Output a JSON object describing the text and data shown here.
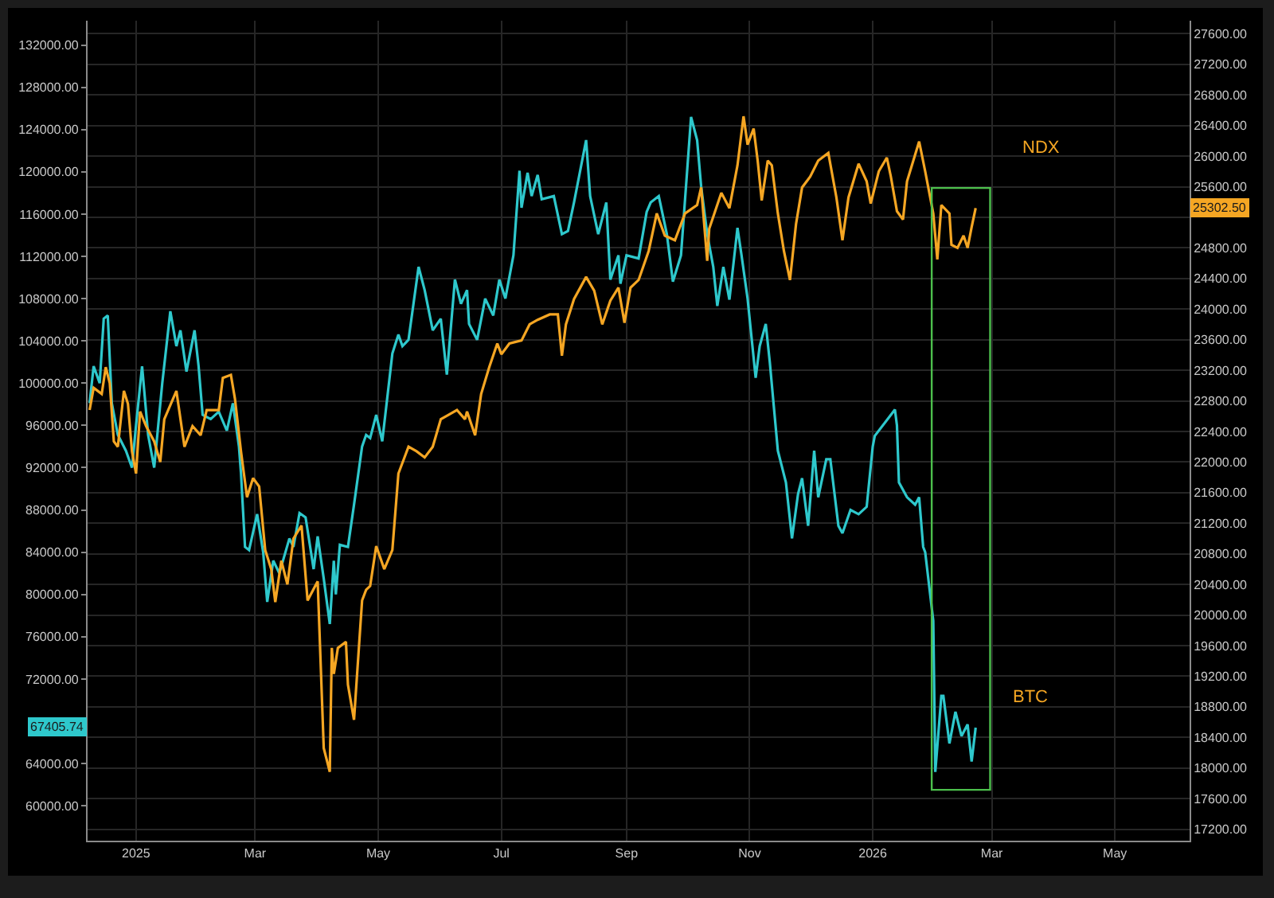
{
  "chart_data": {
    "type": "line",
    "xlim": [
      "2024-12-08",
      "2026-06-07"
    ],
    "xticks": [
      {
        "value": "2025-01-01",
        "label": "2025"
      },
      {
        "value": "2025-03-01",
        "label": "Mar"
      },
      {
        "value": "2025-05-01",
        "label": "May"
      },
      {
        "value": "2025-07-01",
        "label": "Jul"
      },
      {
        "value": "2025-09-01",
        "label": "Sep"
      },
      {
        "value": "2025-11-01",
        "label": "Nov"
      },
      {
        "value": "2026-01-01",
        "label": "2026"
      },
      {
        "value": "2026-03-01",
        "label": "Mar"
      },
      {
        "value": "2026-05-01",
        "label": "May"
      }
    ],
    "ylim": [
      56700,
      134300
    ],
    "yticks": [
      {
        "value": 60000,
        "label": "60000.00"
      },
      {
        "value": 64000,
        "label": "64000.00"
      },
      {
        "value": 68000,
        "label": null
      },
      {
        "value": 72000,
        "label": "72000.00"
      },
      {
        "value": 76000,
        "label": "76000.00"
      },
      {
        "value": 80000,
        "label": "80000.00"
      },
      {
        "value": 84000,
        "label": "84000.00"
      },
      {
        "value": 88000,
        "label": "88000.00"
      },
      {
        "value": 92000,
        "label": "92000.00"
      },
      {
        "value": 96000,
        "label": "96000.00"
      },
      {
        "value": 100000,
        "label": "100000.00"
      },
      {
        "value": 104000,
        "label": "104000.00"
      },
      {
        "value": 108000,
        "label": "108000.00"
      },
      {
        "value": 112000,
        "label": "112000.00"
      },
      {
        "value": 116000,
        "label": "116000.00"
      },
      {
        "value": 120000,
        "label": "120000.00"
      },
      {
        "value": 124000,
        "label": "124000.00"
      },
      {
        "value": 128000,
        "label": "128000.00"
      },
      {
        "value": 132000,
        "label": "132000.00"
      }
    ],
    "y2lim": [
      17050,
      27770
    ],
    "y2ticks": [
      {
        "value": 17200,
        "label": "17200.00"
      },
      {
        "value": 17600,
        "label": "17600.00"
      },
      {
        "value": 18000,
        "label": "18000.00"
      },
      {
        "value": 18400,
        "label": "18400.00"
      },
      {
        "value": 18800,
        "label": "18800.00"
      },
      {
        "value": 19200,
        "label": "19200.00"
      },
      {
        "value": 19600,
        "label": "19600.00"
      },
      {
        "value": 20000,
        "label": "20000.00"
      },
      {
        "value": 20400,
        "label": "20400.00"
      },
      {
        "value": 20800,
        "label": "20800.00"
      },
      {
        "value": 21200,
        "label": "21200.00"
      },
      {
        "value": 21600,
        "label": "21600.00"
      },
      {
        "value": 22000,
        "label": "22000.00"
      },
      {
        "value": 22400,
        "label": "22400.00"
      },
      {
        "value": 22800,
        "label": "22800.00"
      },
      {
        "value": 23200,
        "label": "23200.00"
      },
      {
        "value": 23600,
        "label": "23600.00"
      },
      {
        "value": 24000,
        "label": "24000.00"
      },
      {
        "value": 24400,
        "label": "24400.00"
      },
      {
        "value": 24800,
        "label": "24800.00"
      },
      {
        "value": 25200,
        "label": null
      },
      {
        "value": 25600,
        "label": "25600.00"
      },
      {
        "value": 26000,
        "label": "26000.00"
      },
      {
        "value": 26400,
        "label": "26400.00"
      },
      {
        "value": 26800,
        "label": "26800.00"
      },
      {
        "value": 27200,
        "label": "27200.00"
      },
      {
        "value": 27600,
        "label": "27600.00"
      }
    ],
    "grid": true,
    "line_style": "solid",
    "marker": "none",
    "series": [
      {
        "color": "#2ec8cc",
        "x": [
          "2024-12-09",
          "2024-12-11",
          "2024-12-14",
          "2024-12-16",
          "2024-12-18",
          "2024-12-20",
          "2024-12-23",
          "2024-12-27",
          "2024-12-30",
          "2025-01-01",
          "2025-01-04",
          "2025-01-07",
          "2025-01-10",
          "2025-01-14",
          "2025-01-18",
          "2025-01-21",
          "2025-01-23",
          "2025-01-26",
          "2025-01-30",
          "2025-02-01",
          "2025-02-03",
          "2025-02-07",
          "2025-02-11",
          "2025-02-15",
          "2025-02-18",
          "2025-02-21",
          "2025-02-22",
          "2025-02-24",
          "2025-02-26",
          "2025-03-02",
          "2025-03-05",
          "2025-03-07",
          "2025-03-10",
          "2025-03-13",
          "2025-03-18",
          "2025-03-20",
          "2025-03-23",
          "2025-03-26",
          "2025-03-30",
          "2025-04-01",
          "2025-04-04",
          "2025-04-07",
          "2025-04-09",
          "2025-04-10",
          "2025-04-12",
          "2025-04-16",
          "2025-04-19",
          "2025-04-23",
          "2025-04-25",
          "2025-04-27",
          "2025-04-30",
          "2025-05-03",
          "2025-05-08",
          "2025-05-11",
          "2025-05-13",
          "2025-05-16",
          "2025-05-21",
          "2025-05-24",
          "2025-05-28",
          "2025-06-01",
          "2025-06-04",
          "2025-06-08",
          "2025-06-11",
          "2025-06-14",
          "2025-06-15",
          "2025-06-19",
          "2025-06-23",
          "2025-06-27",
          "2025-06-30",
          "2025-07-03",
          "2025-07-07",
          "2025-07-10",
          "2025-07-11",
          "2025-07-14",
          "2025-07-16",
          "2025-07-19",
          "2025-07-21",
          "2025-07-27",
          "2025-07-31",
          "2025-08-03",
          "2025-08-06",
          "2025-08-12",
          "2025-08-14",
          "2025-08-18",
          "2025-08-22",
          "2025-08-24",
          "2025-08-28",
          "2025-08-29",
          "2025-09-01",
          "2025-09-07",
          "2025-09-11",
          "2025-09-13",
          "2025-09-17",
          "2025-09-21",
          "2025-09-24",
          "2025-09-28",
          "2025-10-03",
          "2025-10-06",
          "2025-10-08",
          "2025-10-11",
          "2025-10-14",
          "2025-10-16",
          "2025-10-19",
          "2025-10-22",
          "2025-10-26",
          "2025-10-28",
          "2025-10-31",
          "2025-11-04",
          "2025-11-06",
          "2025-11-09",
          "2025-11-11",
          "2025-11-15",
          "2025-11-17",
          "2025-11-19",
          "2025-11-22",
          "2025-11-25",
          "2025-11-27",
          "2025-11-30",
          "2025-12-03",
          "2025-12-05",
          "2025-12-09",
          "2025-12-11",
          "2025-12-15",
          "2025-12-17",
          "2025-12-21",
          "2025-12-25",
          "2025-12-29",
          "2026-01-01",
          "2026-01-02",
          "2026-01-12",
          "2026-01-13",
          "2026-01-14",
          "2026-01-18",
          "2026-01-22",
          "2026-01-24",
          "2026-01-26",
          "2026-01-27",
          "2026-01-31",
          "2026-02-01",
          "2026-02-04",
          "2026-02-05",
          "2026-02-08",
          "2026-02-11",
          "2026-02-14",
          "2026-02-17",
          "2026-02-19",
          "2026-02-21"
        ],
        "values": [
          98100,
          101600,
          100000,
          106100,
          106400,
          98100,
          95100,
          93600,
          92000,
          96000,
          101600,
          95100,
          92000,
          100000,
          106800,
          103500,
          105000,
          101100,
          105000,
          101600,
          97000,
          96600,
          97300,
          95500,
          98100,
          94000,
          91500,
          84500,
          84200,
          87600,
          84000,
          79300,
          83200,
          82000,
          85300,
          84500,
          87700,
          87300,
          82400,
          85500,
          81500,
          77200,
          83200,
          80000,
          84700,
          84500,
          88500,
          94000,
          95100,
          94800,
          97000,
          94500,
          102800,
          104600,
          103500,
          104100,
          111000,
          108800,
          105000,
          106100,
          100800,
          109800,
          107500,
          108800,
          105600,
          104100,
          108000,
          106400,
          109800,
          108000,
          112100,
          120100,
          116600,
          119900,
          117700,
          119700,
          117400,
          117700,
          114100,
          114400,
          117100,
          123000,
          117700,
          114100,
          117100,
          109800,
          112100,
          109400,
          112100,
          111800,
          116200,
          117100,
          117700,
          114100,
          109600,
          112100,
          125200,
          123000,
          118600,
          114100,
          111000,
          107300,
          111000,
          107900,
          114700,
          112100,
          108000,
          100500,
          103500,
          105600,
          102000,
          93600,
          92100,
          90600,
          85300,
          89500,
          91000,
          86500,
          93600,
          89200,
          92800,
          92800,
          86500,
          85800,
          88000,
          87600,
          88300,
          94000,
          95000,
          97500,
          96000,
          90600,
          89200,
          88500,
          89200,
          84500,
          84000,
          77500,
          63200,
          70400,
          70400,
          65900,
          68900,
          66600,
          67700,
          64200,
          67400
        ]
      },
      {
        "color": "#f5a623",
        "axis": "y2",
        "x": [
          "2024-12-09",
          "2024-12-11",
          "2024-12-15",
          "2024-12-17",
          "2024-12-19",
          "2024-12-21",
          "2024-12-23",
          "2024-12-26",
          "2024-12-28",
          "2024-12-30",
          "2025-01-01",
          "2025-01-03",
          "2025-01-06",
          "2025-01-10",
          "2025-01-13",
          "2025-01-15",
          "2025-01-21",
          "2025-01-25",
          "2025-01-29",
          "2025-02-02",
          "2025-02-05",
          "2025-02-11",
          "2025-02-13",
          "2025-02-17",
          "2025-02-19",
          "2025-02-22",
          "2025-02-25",
          "2025-02-28",
          "2025-03-03",
          "2025-03-06",
          "2025-03-09",
          "2025-03-11",
          "2025-03-14",
          "2025-03-17",
          "2025-03-20",
          "2025-03-24",
          "2025-03-27",
          "2025-04-01",
          "2025-04-04",
          "2025-04-07",
          "2025-04-08",
          "2025-04-09",
          "2025-04-11",
          "2025-04-15",
          "2025-04-16",
          "2025-04-19",
          "2025-04-23",
          "2025-04-25",
          "2025-04-27",
          "2025-04-30",
          "2025-05-04",
          "2025-05-08",
          "2025-05-11",
          "2025-05-16",
          "2025-05-20",
          "2025-05-24",
          "2025-05-28",
          "2025-06-01",
          "2025-06-05",
          "2025-06-09",
          "2025-06-13",
          "2025-06-14",
          "2025-06-18",
          "2025-06-21",
          "2025-06-25",
          "2025-06-29",
          "2025-07-01",
          "2025-07-05",
          "2025-07-11",
          "2025-07-15",
          "2025-07-19",
          "2025-07-25",
          "2025-07-29",
          "2025-07-31",
          "2025-08-02",
          "2025-08-06",
          "2025-08-12",
          "2025-08-16",
          "2025-08-20",
          "2025-08-24",
          "2025-08-28",
          "2025-08-31",
          "2025-09-03",
          "2025-09-07",
          "2025-09-12",
          "2025-09-16",
          "2025-09-20",
          "2025-09-25",
          "2025-09-30",
          "2025-10-06",
          "2025-10-08",
          "2025-10-11",
          "2025-10-12",
          "2025-10-18",
          "2025-10-22",
          "2025-10-26",
          "2025-10-29",
          "2025-10-31",
          "2025-11-03",
          "2025-11-05",
          "2025-11-07",
          "2025-11-10",
          "2025-11-12",
          "2025-11-15",
          "2025-11-18",
          "2025-11-21",
          "2025-11-24",
          "2025-11-27",
          "2025-12-01",
          "2025-12-05",
          "2025-12-10",
          "2025-12-14",
          "2025-12-17",
          "2025-12-20",
          "2025-12-25",
          "2025-12-29",
          "2025-12-31",
          "2026-01-04",
          "2026-01-08",
          "2026-01-10",
          "2026-01-13",
          "2026-01-16",
          "2026-01-18",
          "2026-01-24",
          "2026-01-27",
          "2026-01-31",
          "2026-02-02",
          "2026-02-04",
          "2026-02-08",
          "2026-02-09",
          "2026-02-12",
          "2026-02-15",
          "2026-02-17",
          "2026-02-19",
          "2026-02-21"
        ],
        "values": [
          22680,
          22970,
          22890,
          23240,
          23030,
          22270,
          22200,
          22930,
          22760,
          22140,
          21850,
          22660,
          22470,
          22270,
          22000,
          22560,
          22930,
          22200,
          22470,
          22350,
          22680,
          22680,
          23100,
          23140,
          22830,
          22140,
          21540,
          21790,
          21680,
          20850,
          20600,
          20170,
          20710,
          20400,
          21000,
          21170,
          20190,
          20440,
          18260,
          17950,
          19570,
          19230,
          19570,
          19650,
          19090,
          18630,
          20190,
          20330,
          20380,
          20900,
          20600,
          20850,
          21850,
          22200,
          22140,
          22060,
          22200,
          22560,
          22620,
          22680,
          22560,
          22660,
          22350,
          22890,
          23240,
          23550,
          23410,
          23550,
          23590,
          23800,
          23860,
          23930,
          23930,
          23390,
          23800,
          24130,
          24420,
          24240,
          23800,
          24110,
          24280,
          23820,
          24280,
          24380,
          24760,
          25250,
          24960,
          24900,
          25250,
          25360,
          25590,
          24630,
          25050,
          25520,
          25320,
          25880,
          26520,
          26150,
          26360,
          25940,
          25420,
          25940,
          25880,
          25250,
          24760,
          24380,
          25110,
          25590,
          25730,
          25940,
          26040,
          25460,
          24900,
          25460,
          25900,
          25670,
          25380,
          25800,
          25980,
          25730,
          25280,
          25170,
          25670,
          26190,
          25800,
          25250,
          24650,
          25360,
          25250,
          24840,
          24800,
          24960,
          24800,
          25070,
          25320
        ]
      }
    ],
    "annotations": [
      "NDX",
      "BTC",
      "67405.74",
      "25302.50"
    ]
  }
}
